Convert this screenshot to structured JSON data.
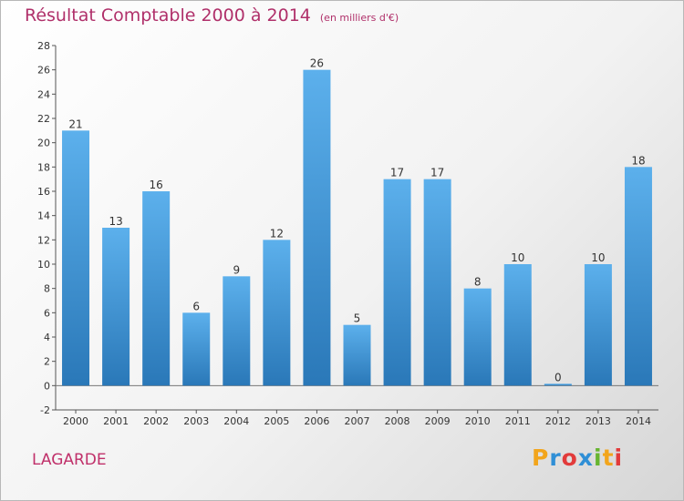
{
  "header": {
    "title": "Résultat Comptable 2000 à 2014",
    "subtitle": "(en milliers d'€)"
  },
  "footer": {
    "commune": "LAGARDE",
    "brand_letters": [
      "P",
      "r",
      "o",
      "x",
      "i",
      "t",
      "i"
    ]
  },
  "colors": {
    "title": "#b0306a",
    "bar_top": "#5cb0ec",
    "bar_bottom": "#2a78b8"
  },
  "chart_data": {
    "type": "bar",
    "title": "Résultat Comptable 2000 à 2014",
    "categories": [
      "2000",
      "2001",
      "2002",
      "2003",
      "2004",
      "2005",
      "2006",
      "2007",
      "2008",
      "2009",
      "2010",
      "2011",
      "2012",
      "2013",
      "2014"
    ],
    "values": [
      21,
      13,
      16,
      6,
      9,
      12,
      26,
      5,
      17,
      17,
      8,
      10,
      0,
      10,
      18
    ],
    "ylim": [
      -2,
      28
    ],
    "yticks": [
      -2,
      0,
      2,
      4,
      6,
      8,
      10,
      12,
      14,
      16,
      18,
      20,
      22,
      24,
      26,
      28
    ],
    "grid": false,
    "data_labels": true
  }
}
